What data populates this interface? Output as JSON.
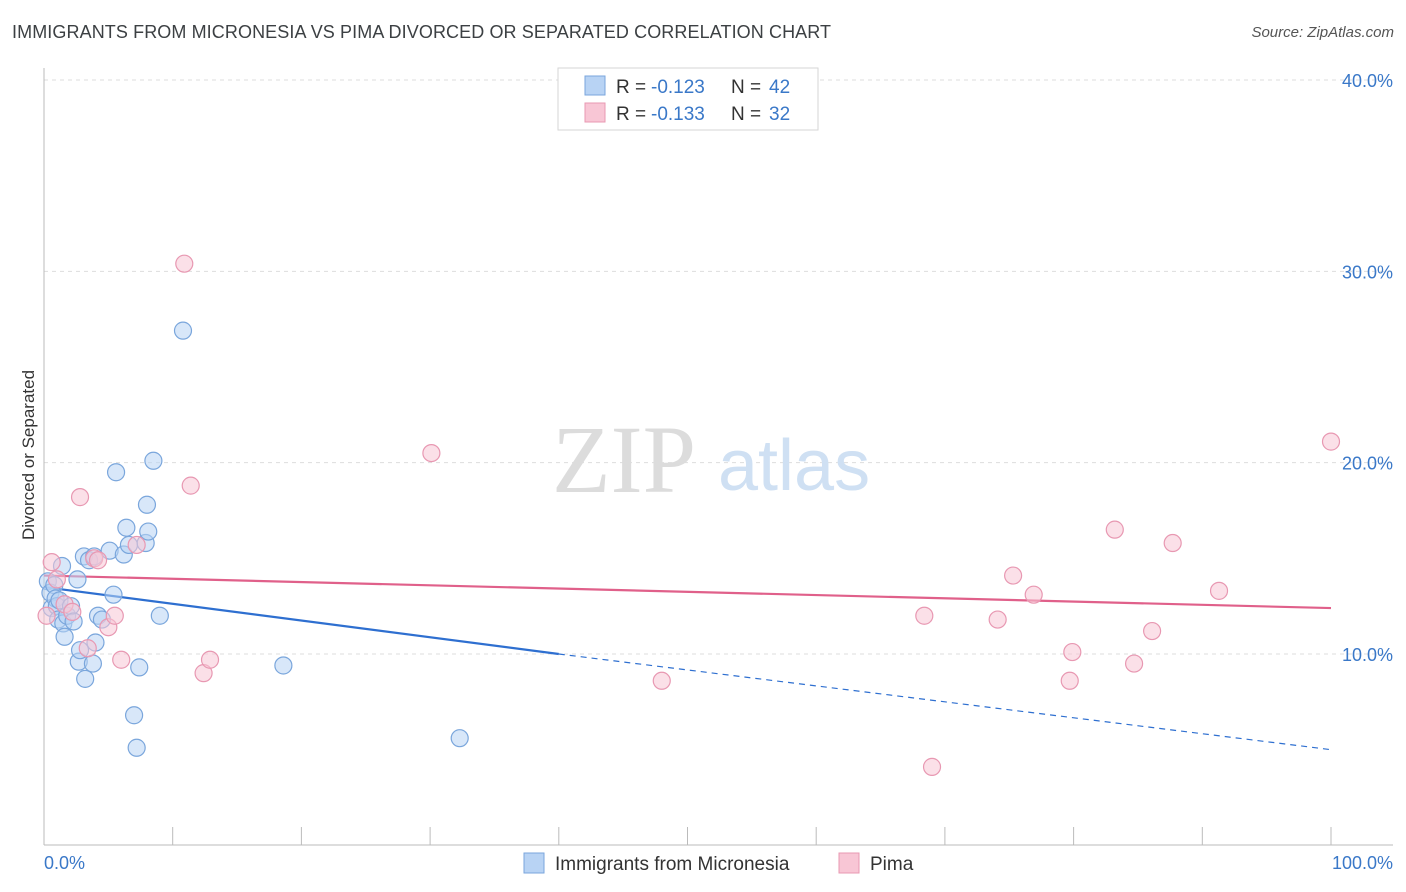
{
  "header": {
    "title": "IMMIGRANTS FROM MICRONESIA VS PIMA DIVORCED OR SEPARATED CORRELATION CHART",
    "source": "Source: ZipAtlas.com"
  },
  "watermark": {
    "zip": "ZIP",
    "atlas": "atlas"
  },
  "colors": {
    "blue_fill": "#b8d3f4",
    "blue_stroke": "#7aa6dc",
    "blue_line": "#2e6fd0",
    "pink_fill": "#f8c6d5",
    "pink_stroke": "#e898b2",
    "pink_line": "#e0608a",
    "grid": "#dddddd",
    "axis_text": "#3a78c8"
  },
  "legend": {
    "rows": [
      {
        "r_label": "R = ",
        "r_value": "-0.123",
        "n_label": "N = ",
        "n_value": "42"
      },
      {
        "r_label": "R = ",
        "r_value": "-0.133",
        "n_label": "N = ",
        "n_value": "32"
      }
    ]
  },
  "bottom_legend": {
    "series1": "Immigrants from Micronesia",
    "series2": "Pima"
  },
  "chart_data": {
    "type": "scatter",
    "title": "IMMIGRANTS FROM MICRONESIA VS PIMA DIVORCED OR SEPARATED CORRELATION CHART",
    "xlabel": "",
    "ylabel": "Divorced or Separated",
    "xlim": [
      0,
      100
    ],
    "ylim": [
      0,
      42
    ],
    "x_tick_labels": {
      "min": "0.0%",
      "max": "100.0%"
    },
    "y_ticks": [
      {
        "value": 10,
        "label": "10.0%"
      },
      {
        "value": 20,
        "label": "20.0%"
      },
      {
        "value": 30,
        "label": "30.0%"
      },
      {
        "value": 40,
        "label": "40.0%"
      }
    ],
    "series": [
      {
        "name": "Immigrants from Micronesia",
        "R": -0.123,
        "N": 42,
        "trend": {
          "x0": 0,
          "y0": 13.5,
          "x1": 40,
          "y1": 10.0,
          "dash_to_x": 100,
          "dash_to_y": 5.0
        },
        "points": [
          [
            0.3,
            13.8
          ],
          [
            0.5,
            13.2
          ],
          [
            0.6,
            12.4
          ],
          [
            0.8,
            13.6
          ],
          [
            0.9,
            12.9
          ],
          [
            1.0,
            12.5
          ],
          [
            1.1,
            11.8
          ],
          [
            1.2,
            12.8
          ],
          [
            1.4,
            14.6
          ],
          [
            1.5,
            11.6
          ],
          [
            1.6,
            10.9
          ],
          [
            1.8,
            12.0
          ],
          [
            2.1,
            12.5
          ],
          [
            2.3,
            11.7
          ],
          [
            2.6,
            13.9
          ],
          [
            2.7,
            9.6
          ],
          [
            2.8,
            10.2
          ],
          [
            3.1,
            15.1
          ],
          [
            3.2,
            8.7
          ],
          [
            3.5,
            14.9
          ],
          [
            3.8,
            9.5
          ],
          [
            3.9,
            15.1
          ],
          [
            4.0,
            10.6
          ],
          [
            4.2,
            12.0
          ],
          [
            4.5,
            11.8
          ],
          [
            5.1,
            15.4
          ],
          [
            5.4,
            13.1
          ],
          [
            5.6,
            19.5
          ],
          [
            6.2,
            15.2
          ],
          [
            6.4,
            16.6
          ],
          [
            6.6,
            15.7
          ],
          [
            7.0,
            6.8
          ],
          [
            7.2,
            5.1
          ],
          [
            7.4,
            9.3
          ],
          [
            7.9,
            15.8
          ],
          [
            8.0,
            17.8
          ],
          [
            8.1,
            16.4
          ],
          [
            8.5,
            20.1
          ],
          [
            9.0,
            12.0
          ],
          [
            10.8,
            26.9
          ],
          [
            18.6,
            9.4
          ],
          [
            32.3,
            5.6
          ]
        ]
      },
      {
        "name": "Pima",
        "R": -0.133,
        "N": 32,
        "trend": {
          "x0": 0,
          "y0": 14.1,
          "x1": 100,
          "y1": 12.4
        },
        "points": [
          [
            0.2,
            12.0
          ],
          [
            0.6,
            14.8
          ],
          [
            1.0,
            13.9
          ],
          [
            1.6,
            12.6
          ],
          [
            2.2,
            12.2
          ],
          [
            2.8,
            18.2
          ],
          [
            3.4,
            10.3
          ],
          [
            3.9,
            15.0
          ],
          [
            4.2,
            14.9
          ],
          [
            5.0,
            11.4
          ],
          [
            5.5,
            12.0
          ],
          [
            6.0,
            9.7
          ],
          [
            7.2,
            15.7
          ],
          [
            10.9,
            30.4
          ],
          [
            11.4,
            18.8
          ],
          [
            12.4,
            9.0
          ],
          [
            12.9,
            9.7
          ],
          [
            30.1,
            20.5
          ],
          [
            48.0,
            8.6
          ],
          [
            68.4,
            12.0
          ],
          [
            69.0,
            4.1
          ],
          [
            74.1,
            11.8
          ],
          [
            75.3,
            14.1
          ],
          [
            76.9,
            13.1
          ],
          [
            79.7,
            8.6
          ],
          [
            79.9,
            10.1
          ],
          [
            83.2,
            16.5
          ],
          [
            84.7,
            9.5
          ],
          [
            86.1,
            11.2
          ],
          [
            87.7,
            15.8
          ],
          [
            91.3,
            13.3
          ],
          [
            100.0,
            21.1
          ]
        ]
      }
    ]
  }
}
